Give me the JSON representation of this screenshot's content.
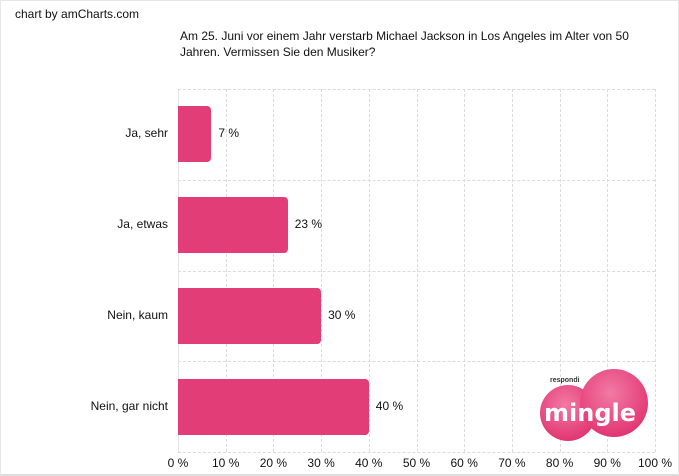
{
  "credit": "chart by amCharts.com",
  "title": "Am 25. Juni vor einem Jahr verstarb Michael Jackson in Los Angeles im Alter von 50 Jahren. Vermissen Sie den Musiker?",
  "logo": {
    "small_text": "respondi",
    "brand": "mingle",
    "color": "#e33d78"
  },
  "colors": {
    "bar": "#e33d78",
    "grid": "#dcdcdc"
  },
  "chart_data": {
    "type": "bar",
    "orientation": "horizontal",
    "title": "Am 25. Juni vor einem Jahr verstarb Michael Jackson in Los Angeles im Alter von 50 Jahren. Vermissen Sie den Musiker?",
    "categories": [
      "Ja, sehr",
      "Ja, etwas",
      "Nein, kaum",
      "Nein, gar nicht"
    ],
    "values": [
      7,
      23,
      30,
      40
    ],
    "value_labels": [
      "7 %",
      "23 %",
      "30 %",
      "40 %"
    ],
    "xlabel": "",
    "ylabel": "",
    "xlim": [
      0,
      100
    ],
    "x_ticks": [
      "0 %",
      "10 %",
      "20 %",
      "30 %",
      "40 %",
      "50 %",
      "60 %",
      "70 %",
      "80 %",
      "90 %",
      "100 %"
    ],
    "grid": true,
    "legend": null
  }
}
